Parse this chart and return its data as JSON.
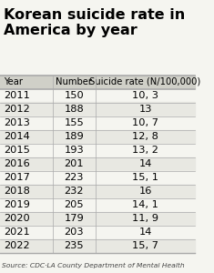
{
  "title": "Korean suicide rate in\nAmerica by year",
  "headers": [
    "Year",
    "Number",
    "Suicide rate (N/100,000)"
  ],
  "rows": [
    [
      "2011",
      "150",
      "10, 3"
    ],
    [
      "2012",
      "188",
      "13"
    ],
    [
      "2013",
      "155",
      "10, 7"
    ],
    [
      "2014",
      "189",
      "12, 8"
    ],
    [
      "2015",
      "193",
      "13, 2"
    ],
    [
      "2016",
      "201",
      "14"
    ],
    [
      "2017",
      "223",
      "15, 1"
    ],
    [
      "2018",
      "232",
      "16"
    ],
    [
      "2019",
      "205",
      "14, 1"
    ],
    [
      "2020",
      "179",
      "11, 9"
    ],
    [
      "2021",
      "203",
      "14"
    ],
    [
      "2022",
      "235",
      "15, 7"
    ]
  ],
  "source": "Source: CDC·LA County Department of Mental Health",
  "bg_color": "#f5f5f0",
  "header_bg": "#d0d0c8",
  "row_alt_color": "#e8e8e2",
  "row_color": "#f5f5f0",
  "line_color": "#aaaaaa",
  "title_fontsize": 11.5,
  "header_fontsize": 7.2,
  "cell_fontsize": 8.2,
  "source_fontsize": 5.4
}
